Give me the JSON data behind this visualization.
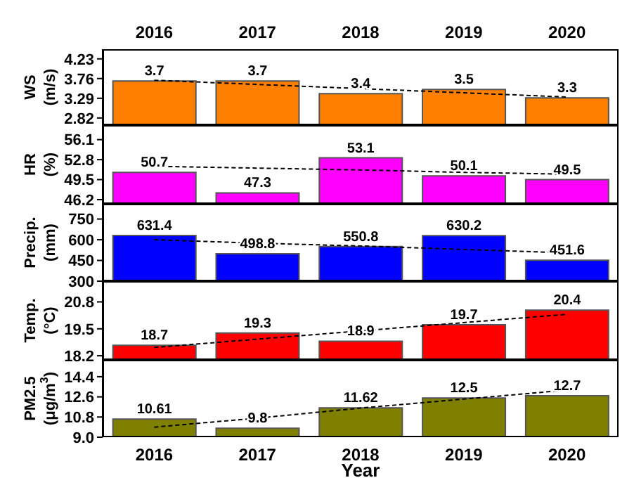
{
  "chart_data": [
    {
      "type": "bar",
      "ylabel": "WS\n(m/s)",
      "categories": [
        "2016",
        "2017",
        "2018",
        "2019",
        "2020"
      ],
      "ylim": [
        2.65,
        4.46
      ],
      "yticks": [
        2.82,
        3.29,
        3.76,
        4.23
      ],
      "grid": false,
      "tick_labels": true,
      "series": [
        {
          "color": "#ff8000",
          "values": [
            3.7,
            3.7,
            3.4,
            3.5,
            3.3
          ],
          "value_labels": [
            "3.7",
            "3.7",
            "3.4",
            "3.5",
            "3.3"
          ]
        },
        {
          "type": "line",
          "color": "#000000",
          "line_style": "dashed",
          "values": [
            3.72,
            3.62,
            3.52,
            3.42,
            3.32
          ]
        }
      ]
    },
    {
      "type": "bar",
      "ylabel": "HR\n(%)",
      "categories": [
        "2016",
        "2017",
        "2018",
        "2019",
        "2020"
      ],
      "ylim": [
        45.5,
        58.5
      ],
      "yticks": [
        46.2,
        49.5,
        52.8,
        56.1
      ],
      "grid": false,
      "tick_labels": "y",
      "series": [
        {
          "color": "#ff00ff",
          "values": [
            50.7,
            47.3,
            53.1,
            50.1,
            49.5
          ],
          "value_labels": [
            "50.7",
            "47.3",
            "53.1",
            "50.1",
            "49.5"
          ]
        },
        {
          "type": "line",
          "color": "#000000",
          "line_style": "dashed",
          "values": [
            51.7,
            51.4,
            51.1,
            50.7,
            50.4
          ]
        }
      ]
    },
    {
      "type": "bar",
      "ylabel": "Precip.\n(mm)",
      "categories": [
        "2016",
        "2017",
        "2018",
        "2019",
        "2020"
      ],
      "ylim": [
        300,
        860
      ],
      "yticks": [
        300,
        450,
        600,
        750
      ],
      "grid": false,
      "tick_labels": "y",
      "series": [
        {
          "color": "#0000ff",
          "values": [
            631.4,
            498.8,
            550.8,
            630.2,
            451.6
          ],
          "value_labels": [
            "631.4",
            "498.8",
            "550.8",
            "630.2",
            "451.6"
          ]
        },
        {
          "type": "line",
          "color": "#000000",
          "line_style": "dashed",
          "values": [
            600,
            575,
            555,
            530,
            505
          ]
        }
      ]
    },
    {
      "type": "bar",
      "ylabel": "Temp.\n(°C)",
      "categories": [
        "2016",
        "2017",
        "2018",
        "2019",
        "2020"
      ],
      "ylim": [
        18.0,
        21.8
      ],
      "yticks": [
        18.2,
        19.5,
        20.8
      ],
      "grid": false,
      "tick_labels": "y",
      "series": [
        {
          "color": "#ff0000",
          "values": [
            18.7,
            19.3,
            18.9,
            19.7,
            20.4
          ],
          "value_labels": [
            "18.7",
            "19.3",
            "18.9",
            "19.7",
            "20.4"
          ]
        },
        {
          "type": "line",
          "color": "#000000",
          "line_style": "dashed",
          "values": [
            18.6,
            19.0,
            19.4,
            19.8,
            20.2
          ]
        }
      ]
    },
    {
      "type": "bar",
      "ylabel": "PM2.5\n(μg/m$^{3}$)",
      "xlabel": "Year",
      "categories": [
        "2016",
        "2017",
        "2018",
        "2019",
        "2020"
      ],
      "ylim": [
        9.0,
        15.9
      ],
      "yticks": [
        {
          "value": 9,
          "label": "9.0"
        },
        10.8,
        12.6,
        14.4
      ],
      "grid": false,
      "tick_labels": true,
      "series": [
        {
          "color": "#808000",
          "values": [
            10.61,
            9.8,
            11.62,
            12.5,
            12.7
          ],
          "value_labels": [
            "10.61",
            "9.8",
            "11.62",
            "12.5",
            "12.7"
          ]
        },
        {
          "type": "line",
          "color": "#000000",
          "line_style": "dashed",
          "values": [
            9.9,
            10.7,
            11.6,
            12.4,
            13.2
          ]
        }
      ]
    }
  ]
}
